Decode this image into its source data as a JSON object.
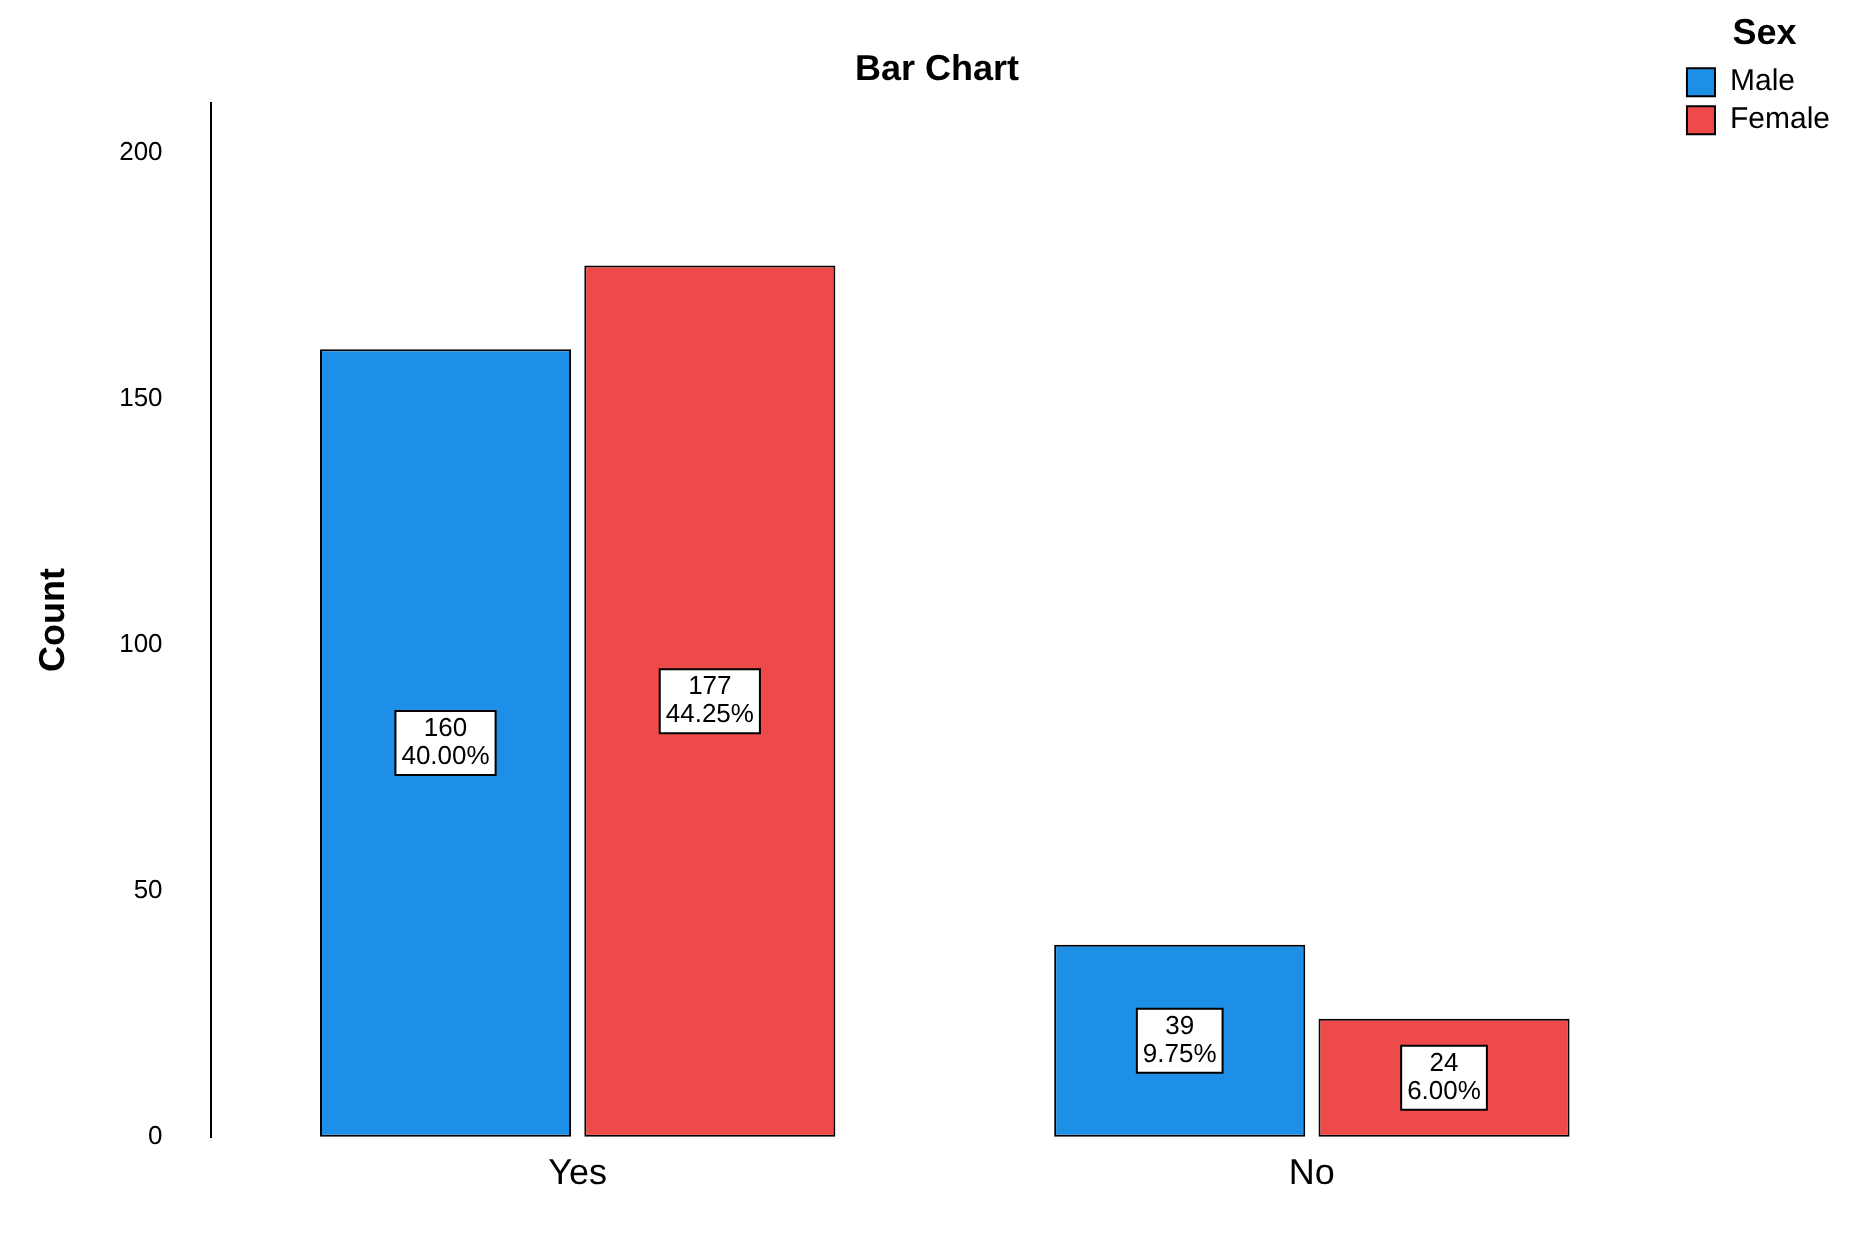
{
  "chart_data": {
    "type": "bar",
    "title": "Bar Chart",
    "ylabel": "Count",
    "legend_title": "Sex",
    "legend": "top right",
    "grid": false,
    "categories": [
      "Yes",
      "No"
    ],
    "ylim": [
      0,
      210
    ],
    "yticks": [
      0,
      50,
      100,
      150,
      200
    ],
    "series": [
      {
        "name": "Male",
        "color": "#1e8fe6",
        "values": [
          160,
          39
        ],
        "value_labels": [
          "160\n40.00%",
          "39\n9.75%"
        ]
      },
      {
        "name": "Female",
        "color": "#ee4a4a",
        "values": [
          177,
          24
        ],
        "value_labels": [
          "177\n44.25%",
          "24\n6.00%"
        ]
      }
    ]
  }
}
